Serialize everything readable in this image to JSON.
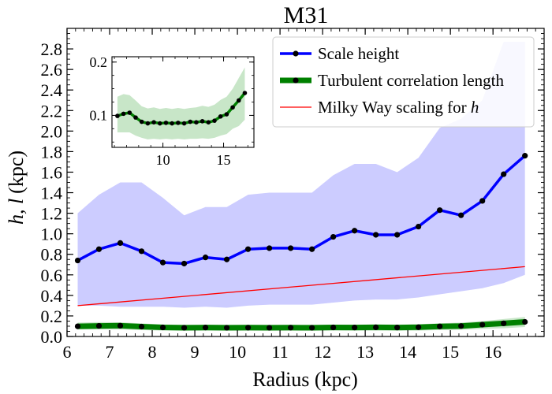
{
  "chart_data": {
    "type": "line",
    "title": "M31",
    "xlabel": "Radius (kpc)",
    "ylabel_main": "h, l",
    "ylabel_unit": "(kpc)",
    "xlim": [
      6.0,
      17.2
    ],
    "ylim": [
      0.0,
      3.0
    ],
    "xticks": [
      6,
      7,
      8,
      9,
      10,
      11,
      12,
      13,
      14,
      15,
      16
    ],
    "yticks": [
      0.0,
      0.2,
      0.4,
      0.6,
      0.8,
      1.0,
      1.2,
      1.4,
      1.6,
      1.8,
      2.0,
      2.2,
      2.4,
      2.6,
      2.8
    ],
    "x": [
      6.25,
      6.75,
      7.25,
      7.75,
      8.25,
      8.75,
      9.25,
      9.75,
      10.25,
      10.75,
      11.25,
      11.75,
      12.25,
      12.75,
      13.25,
      13.75,
      14.25,
      14.75,
      15.25,
      15.75,
      16.25,
      16.75
    ],
    "series": [
      {
        "name": "Scale height",
        "color": "#0000ff",
        "values": [
          0.74,
          0.85,
          0.91,
          0.83,
          0.72,
          0.71,
          0.77,
          0.75,
          0.85,
          0.86,
          0.86,
          0.85,
          0.97,
          1.03,
          0.99,
          0.99,
          1.07,
          1.23,
          1.18,
          1.32,
          1.58,
          1.76
        ],
        "band_upper": [
          1.2,
          1.38,
          1.5,
          1.5,
          1.35,
          1.18,
          1.26,
          1.26,
          1.38,
          1.4,
          1.4,
          1.4,
          1.57,
          1.68,
          1.68,
          1.6,
          1.74,
          2.03,
          2.12,
          2.3,
          2.87,
          2.87
        ],
        "band_lower": [
          0.3,
          0.3,
          0.29,
          0.29,
          0.29,
          0.28,
          0.29,
          0.28,
          0.3,
          0.31,
          0.31,
          0.31,
          0.33,
          0.35,
          0.36,
          0.36,
          0.38,
          0.41,
          0.44,
          0.47,
          0.52,
          0.6
        ]
      },
      {
        "name": "Turbulent correlation length",
        "color": "#008000",
        "values": [
          0.099,
          0.103,
          0.105,
          0.096,
          0.088,
          0.085,
          0.087,
          0.085,
          0.086,
          0.085,
          0.086,
          0.085,
          0.088,
          0.087,
          0.089,
          0.087,
          0.09,
          0.098,
          0.102,
          0.115,
          0.128,
          0.142
        ],
        "band_upper": [
          0.135,
          0.14,
          0.138,
          0.128,
          0.117,
          0.113,
          0.115,
          0.112,
          0.114,
          0.112,
          0.114,
          0.112,
          0.114,
          0.115,
          0.118,
          0.116,
          0.12,
          0.129,
          0.135,
          0.15,
          0.17,
          0.19
        ],
        "band_lower": [
          0.068,
          0.068,
          0.068,
          0.062,
          0.058,
          0.055,
          0.056,
          0.055,
          0.056,
          0.055,
          0.056,
          0.055,
          0.056,
          0.056,
          0.057,
          0.056,
          0.058,
          0.062,
          0.065,
          0.075,
          0.08,
          0.092
        ]
      },
      {
        "name": "Milky Way scaling for h",
        "color": "#ff0000",
        "x": [
          6.25,
          16.75
        ],
        "values": [
          0.3,
          0.68
        ],
        "style": "thin line, no markers"
      }
    ],
    "legend": {
      "position": "top-right",
      "entries": [
        "Scale height",
        "Turbulent correlation length",
        "Milky Way scaling for "
      ],
      "italic_suffix": "h"
    },
    "inset": {
      "series": "Turbulent correlation length",
      "position": "top-left",
      "xlim": [
        5.8,
        17.5
      ],
      "ylim": [
        0.04,
        0.21
      ],
      "xticks": [
        10,
        15
      ],
      "yticks": [
        0.1,
        0.2
      ],
      "ytick_labels": [
        "0.1",
        "0.2"
      ]
    },
    "grid": false
  }
}
